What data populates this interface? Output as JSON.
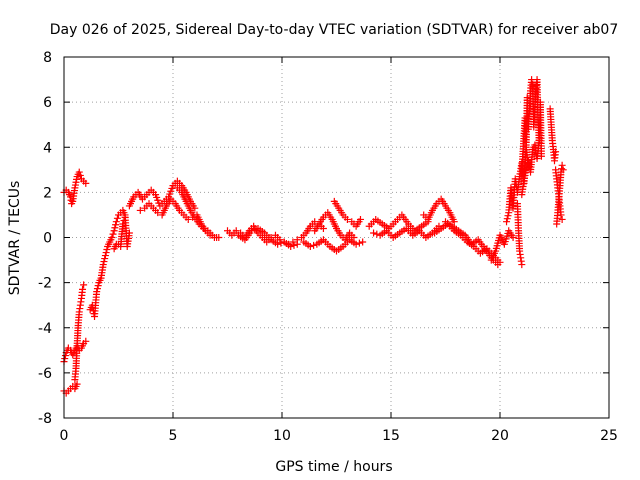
{
  "chart_data": {
    "type": "scatter",
    "title": "Day 026 of 2025, Sidereal Day-to-day VTEC variation (SDTVAR) for receiver ab07",
    "xlabel": "GPS time / hours",
    "ylabel": "SDTVAR / TECUs",
    "xlim": [
      0,
      25
    ],
    "ylim": [
      -8,
      8
    ],
    "xticks": [
      "0",
      "5",
      "10",
      "15",
      "20",
      "25"
    ],
    "yticks": [
      "-8",
      "-6",
      "-4",
      "-2",
      "0",
      "2",
      "4",
      "6",
      "8"
    ],
    "grid": true,
    "marker": "plus",
    "color": "#ff0000",
    "series": [
      {
        "name": "s1",
        "x": [
          0.0,
          0.1,
          0.2,
          0.3,
          0.4,
          0.5,
          0.6
        ],
        "y": [
          -6.8,
          -6.9,
          -6.8,
          -6.7,
          -6.6,
          -6.7,
          -6.5
        ]
      },
      {
        "name": "s2",
        "x": [
          0.0,
          0.1,
          0.2,
          0.3,
          0.4,
          0.5,
          0.6,
          0.7,
          0.8,
          0.9,
          1.0
        ],
        "y": [
          -5.5,
          -5.1,
          -4.9,
          -5.0,
          -5.2,
          -5.0,
          -4.8,
          -5.0,
          -4.9,
          -4.7,
          -4.6
        ]
      },
      {
        "name": "s3",
        "x": [
          0.5,
          0.55,
          0.6,
          0.65,
          0.7,
          0.75,
          0.8,
          0.85,
          0.9
        ],
        "y": [
          -6.3,
          -5.8,
          -4.8,
          -3.9,
          -3.3,
          -3.0,
          -2.7,
          -2.3,
          -2.1
        ]
      },
      {
        "name": "s4",
        "x": [
          0.0,
          0.1,
          0.2,
          0.3,
          0.35,
          0.4,
          0.5,
          0.6,
          0.7,
          0.8,
          0.9,
          1.0
        ],
        "y": [
          2.0,
          2.1,
          2.0,
          1.8,
          1.5,
          1.6,
          2.2,
          2.7,
          2.9,
          2.6,
          2.5,
          2.4
        ]
      },
      {
        "name": "s5",
        "x": [
          1.2,
          1.3,
          1.4,
          1.5,
          1.6,
          1.7,
          1.8,
          1.9,
          2.0,
          2.1,
          2.2,
          2.3,
          2.4,
          2.5,
          2.6,
          2.7,
          2.8,
          2.9,
          3.0
        ],
        "y": [
          -3.2,
          -3.0,
          -3.5,
          -2.4,
          -2.0,
          -1.8,
          -1.2,
          -0.8,
          -0.4,
          -0.2,
          0.0,
          0.3,
          0.7,
          1.0,
          1.1,
          1.2,
          1.0,
          -0.4,
          0.2
        ]
      },
      {
        "name": "s6",
        "x": [
          2.3,
          2.4,
          2.5,
          2.6,
          2.7,
          2.8
        ],
        "y": [
          -0.5,
          -0.3,
          -0.3,
          -0.4,
          0.6,
          0.9
        ]
      },
      {
        "name": "s7",
        "x": [
          3.0,
          3.2,
          3.4,
          3.6,
          3.8,
          4.0,
          4.2,
          4.4,
          4.6,
          4.8,
          5.0,
          5.2,
          5.4,
          5.6,
          5.8,
          6.0
        ],
        "y": [
          1.4,
          1.8,
          2.0,
          1.7,
          1.9,
          2.1,
          1.9,
          1.4,
          1.6,
          1.8,
          2.3,
          2.5,
          2.3,
          2.0,
          1.6,
          1.3
        ]
      },
      {
        "name": "s8",
        "x": [
          3.5,
          3.7,
          3.9,
          4.1,
          4.3,
          4.5,
          4.7,
          4.9,
          5.1,
          5.3,
          5.5,
          5.7,
          5.9,
          6.1,
          6.3,
          6.5,
          6.7,
          6.9,
          7.1
        ],
        "y": [
          1.2,
          1.3,
          1.5,
          1.3,
          1.1,
          1.0,
          1.4,
          1.7,
          1.5,
          1.2,
          1.0,
          0.8,
          0.9,
          1.0,
          0.6,
          0.3,
          0.1,
          0.0,
          0.0
        ]
      },
      {
        "name": "s9",
        "x": [
          5.2,
          5.4,
          5.6,
          5.8,
          6.0,
          6.2,
          6.4,
          6.6,
          6.8,
          7.0
        ],
        "y": [
          2.2,
          2.0,
          1.6,
          1.2,
          0.9,
          0.6,
          0.4,
          0.3,
          0.1,
          0.0
        ]
      },
      {
        "name": "s10",
        "x": [
          7.5,
          7.7,
          7.9,
          8.1,
          8.3,
          8.5,
          8.7,
          8.9,
          9.1,
          9.3,
          9.5,
          9.7,
          9.9,
          10.1,
          10.3,
          10.5,
          10.7,
          10.9,
          11.1,
          11.3,
          11.5,
          11.7,
          11.9
        ],
        "y": [
          0.3,
          0.1,
          0.3,
          0.2,
          0.0,
          0.3,
          0.5,
          0.2,
          0.0,
          -0.2,
          0.0,
          0.1,
          -0.1,
          -0.2,
          -0.3,
          -0.2,
          -0.1,
          0.0,
          0.2,
          0.5,
          0.7,
          0.6,
          0.4
        ]
      },
      {
        "name": "s11",
        "x": [
          8.0,
          8.3,
          8.6,
          8.9,
          9.2,
          9.5,
          9.8,
          10.1,
          10.4,
          10.7
        ],
        "y": [
          0.1,
          -0.1,
          0.3,
          0.4,
          0.2,
          -0.1,
          -0.3,
          -0.2,
          -0.4,
          -0.3
        ]
      },
      {
        "name": "s12",
        "x": [
          11.0,
          11.3,
          11.6,
          11.9,
          12.2,
          12.5,
          12.8,
          13.1,
          13.4,
          13.7
        ],
        "y": [
          -0.2,
          -0.4,
          -0.3,
          -0.1,
          -0.4,
          -0.6,
          -0.4,
          -0.1,
          -0.3,
          -0.2
        ]
      },
      {
        "name": "s13",
        "x": [
          11.5,
          11.7,
          11.9,
          12.1,
          12.3,
          12.5,
          12.7,
          12.9,
          13.1,
          13.3
        ],
        "y": [
          0.3,
          0.6,
          0.9,
          1.1,
          0.8,
          0.4,
          0.1,
          -0.1,
          0.2,
          0.0
        ]
      },
      {
        "name": "s14",
        "x": [
          12.4,
          12.6,
          12.8,
          13.0,
          13.2,
          13.4,
          13.6
        ],
        "y": [
          1.6,
          1.3,
          1.0,
          0.8,
          0.7,
          0.5,
          0.8
        ]
      },
      {
        "name": "s15",
        "x": [
          14.0,
          14.3,
          14.6,
          14.9,
          15.2,
          15.5,
          15.8,
          16.1,
          16.4,
          16.7
        ],
        "y": [
          0.5,
          0.8,
          0.6,
          0.4,
          0.7,
          1.0,
          0.6,
          0.3,
          0.5,
          0.7
        ]
      },
      {
        "name": "s16",
        "x": [
          14.2,
          14.5,
          14.8,
          15.1,
          15.4,
          15.7,
          16.0,
          16.3,
          16.6,
          16.9,
          17.2
        ],
        "y": [
          0.2,
          0.1,
          0.3,
          0.0,
          0.2,
          0.4,
          0.1,
          0.3,
          0.0,
          0.2,
          0.5
        ]
      },
      {
        "name": "s17",
        "x": [
          16.5,
          16.7,
          16.9,
          17.1,
          17.3,
          17.5,
          17.7,
          17.9
        ],
        "y": [
          1.0,
          0.8,
          1.2,
          1.5,
          1.7,
          1.4,
          1.1,
          0.7
        ]
      },
      {
        "name": "s18",
        "x": [
          17.0,
          17.3,
          17.6,
          17.9,
          18.2,
          18.5,
          18.8,
          19.1,
          19.4,
          19.7,
          20.0
        ],
        "y": [
          0.2,
          0.4,
          0.6,
          0.3,
          0.1,
          -0.2,
          -0.4,
          -0.7,
          -0.5,
          -0.8,
          -1.1
        ]
      },
      {
        "name": "s19",
        "x": [
          17.5,
          17.8,
          18.1,
          18.4,
          18.7,
          19.0,
          19.3,
          19.6,
          19.9
        ],
        "y": [
          0.7,
          0.5,
          0.3,
          0.1,
          -0.3,
          -0.1,
          -0.5,
          -0.9,
          -1.2
        ]
      },
      {
        "name": "s20",
        "x": [
          19.6,
          19.8,
          20.0,
          20.2,
          20.4,
          20.6
        ],
        "y": [
          -1.0,
          -0.6,
          0.1,
          -0.3,
          0.3,
          0.0
        ]
      },
      {
        "name": "s21",
        "x": [
          20.3,
          20.4,
          20.5,
          20.6,
          20.7,
          20.8,
          20.9,
          21.0,
          21.1,
          21.2,
          21.3
        ],
        "y": [
          0.7,
          1.1,
          2.2,
          1.3,
          2.6,
          2.0,
          2.7,
          3.3,
          2.4,
          4.0,
          3.1
        ]
      },
      {
        "name": "s22",
        "x": [
          20.8,
          20.85,
          20.9,
          20.95,
          21.0
        ],
        "y": [
          1.5,
          0.3,
          -0.6,
          -0.9,
          -1.2
        ]
      },
      {
        "name": "s23",
        "x": [
          21.0,
          21.05,
          21.1,
          21.15,
          21.2,
          21.25,
          21.3,
          21.35,
          21.4,
          21.45,
          21.5,
          21.55,
          21.6,
          21.65,
          21.7,
          21.75,
          21.8,
          21.85,
          21.9
        ],
        "y": [
          2.8,
          3.7,
          4.5,
          5.3,
          4.1,
          6.2,
          4.8,
          5.6,
          6.5,
          7.0,
          6.8,
          4.9,
          5.8,
          6.6,
          7.0,
          5.2,
          4.2,
          6.0,
          3.6
        ]
      },
      {
        "name": "s24",
        "x": [
          21.0,
          21.1,
          21.2,
          21.3,
          21.4,
          21.5,
          21.6,
          21.7,
          21.8
        ],
        "y": [
          1.9,
          2.5,
          3.0,
          3.4,
          2.9,
          3.9,
          4.1,
          3.5,
          4.3
        ]
      },
      {
        "name": "s25",
        "x": [
          22.3,
          22.4,
          22.45,
          22.5,
          22.55
        ],
        "y": [
          5.7,
          4.3,
          3.9,
          3.4,
          3.8
        ]
      },
      {
        "name": "s26",
        "x": [
          22.6,
          22.65,
          22.7,
          22.75,
          22.8,
          22.85,
          22.9
        ],
        "y": [
          0.6,
          1.1,
          1.7,
          2.3,
          2.9,
          3.2,
          3.0
        ]
      },
      {
        "name": "s27",
        "x": [
          22.55,
          22.6,
          22.65,
          22.7,
          22.75,
          22.8,
          22.85
        ],
        "y": [
          3.0,
          2.6,
          2.2,
          1.8,
          1.4,
          1.0,
          0.8
        ]
      }
    ]
  }
}
